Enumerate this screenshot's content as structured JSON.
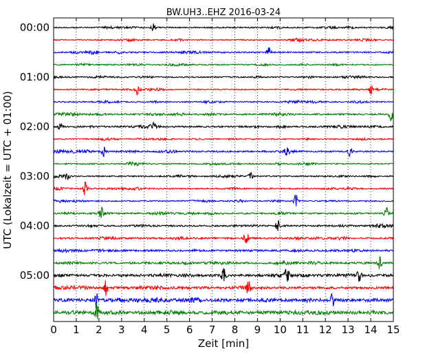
{
  "chart_data": {
    "type": "line",
    "title": "BW.UH3..EHZ 2016-03-24",
    "xlabel": "Zeit  [min]",
    "ylabel": "UTC (Lokalzeit = UTC + 01:00)",
    "xlim": [
      0,
      15
    ],
    "x_ticks": [
      "0",
      "1",
      "2",
      "3",
      "4",
      "5",
      "6",
      "7",
      "8",
      "9",
      "10",
      "11",
      "12",
      "13",
      "14",
      "15"
    ],
    "y_ticks": [
      "00:00",
      "01:00",
      "02:00",
      "03:00",
      "04:00",
      "05:00"
    ],
    "grid": "vertical dotted lines each minute",
    "trace_colors": [
      "#000000",
      "#ff0000",
      "#0000ff",
      "#008000"
    ],
    "traces_per_hour": 4,
    "num_traces": 24,
    "trace_noise_level": [
      0.6,
      0.6,
      0.7,
      0.6,
      0.6,
      0.6,
      0.6,
      0.8,
      0.8,
      0.6,
      0.8,
      0.6,
      0.6,
      0.7,
      0.6,
      0.8,
      0.8,
      0.9,
      0.9,
      1.0,
      1.2,
      1.3,
      1.6,
      1.6
    ],
    "events": [
      {
        "trace": 0,
        "minute": 4.4,
        "amplitude": 0.7
      },
      {
        "trace": 2,
        "minute": 9.5,
        "amplitude": 0.9
      },
      {
        "trace": 5,
        "minute": 3.7,
        "amplitude": 1.0
      },
      {
        "trace": 5,
        "minute": 14.0,
        "amplitude": 0.8
      },
      {
        "trace": 7,
        "minute": 14.9,
        "amplitude": 1.2
      },
      {
        "trace": 8,
        "minute": 0.3,
        "amplitude": 0.8
      },
      {
        "trace": 8,
        "minute": 4.4,
        "amplitude": 0.8
      },
      {
        "trace": 10,
        "minute": 2.2,
        "amplitude": 0.9
      },
      {
        "trace": 10,
        "minute": 10.3,
        "amplitude": 0.8
      },
      {
        "trace": 10,
        "minute": 13.1,
        "amplitude": 1.2
      },
      {
        "trace": 12,
        "minute": 0.6,
        "amplitude": 1.0
      },
      {
        "trace": 12,
        "minute": 8.7,
        "amplitude": 0.7
      },
      {
        "trace": 13,
        "minute": 1.4,
        "amplitude": 1.6
      },
      {
        "trace": 14,
        "minute": 10.7,
        "amplitude": 1.3
      },
      {
        "trace": 15,
        "minute": 2.1,
        "amplitude": 1.2
      },
      {
        "trace": 15,
        "minute": 14.7,
        "amplitude": 1.1
      },
      {
        "trace": 16,
        "minute": 9.9,
        "amplitude": 1.0
      },
      {
        "trace": 17,
        "minute": 8.5,
        "amplitude": 1.6
      },
      {
        "trace": 19,
        "minute": 14.4,
        "amplitude": 1.2
      },
      {
        "trace": 20,
        "minute": 7.5,
        "amplitude": 1.3
      },
      {
        "trace": 20,
        "minute": 10.3,
        "amplitude": 1.3
      },
      {
        "trace": 20,
        "minute": 13.5,
        "amplitude": 1.3
      },
      {
        "trace": 21,
        "minute": 2.3,
        "amplitude": 1.3
      },
      {
        "trace": 21,
        "minute": 8.6,
        "amplitude": 1.4
      },
      {
        "trace": 22,
        "minute": 1.9,
        "amplitude": 1.4
      },
      {
        "trace": 22,
        "minute": 12.3,
        "amplitude": 1.2
      },
      {
        "trace": 23,
        "minute": 1.9,
        "amplitude": 1.6
      }
    ]
  }
}
